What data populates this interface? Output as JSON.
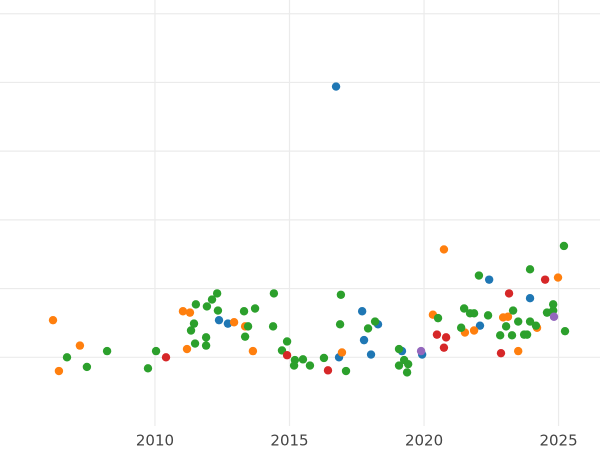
{
  "chart_data": {
    "type": "scatter",
    "xlim": [
      2004.24,
      2026.54
    ],
    "xticks": [
      2010,
      2015,
      2020,
      2025
    ],
    "ylim": [
      0,
      6.2
    ],
    "yticks": [
      1,
      2,
      3,
      4,
      5,
      6
    ],
    "grid": true,
    "series": [
      {
        "color": "#1f77b4",
        "x": [
          2016.73,
          2017.7,
          2018.29,
          2017.77,
          2018.03,
          2019.18,
          2019.93,
          2012.38,
          2012.71,
          2016.84,
          2022.42,
          2023.94,
          2022.08
        ],
        "values": [
          4.94,
          1.67,
          1.48,
          1.25,
          1.04,
          1.09,
          1.04,
          1.54,
          1.49,
          1.0,
          2.13,
          1.86,
          1.46
        ]
      },
      {
        "color": "#ff7f0e",
        "x": [
          2006.21,
          2006.43,
          2007.21,
          2011.04,
          2011.3,
          2011.19,
          2012.94,
          2013.35,
          2013.64,
          2016.95,
          2020.74,
          2020.33,
          2021.52,
          2021.86,
          2022.94,
          2023.12,
          2023.5,
          2024.2,
          2024.98
        ],
        "values": [
          1.54,
          0.8,
          1.17,
          1.67,
          1.65,
          1.12,
          1.51,
          1.45,
          1.09,
          1.07,
          2.57,
          1.62,
          1.36,
          1.39,
          1.58,
          1.59,
          1.09,
          1.43,
          2.16
        ]
      },
      {
        "color": "#2ca02c",
        "x": [
          2006.73,
          2007.47,
          2008.22,
          2009.74,
          2010.04,
          2011.52,
          2011.34,
          2011.45,
          2011.49,
          2011.9,
          2011.9,
          2011.93,
          2012.12,
          2012.31,
          2012.34,
          2013.31,
          2013.46,
          2013.35,
          2013.72,
          2014.42,
          2014.39,
          2014.72,
          2014.91,
          2015.2,
          2015.17,
          2015.5,
          2015.76,
          2016.28,
          2016.91,
          2016.88,
          2017.1,
          2017.92,
          2018.18,
          2019.07,
          2019.07,
          2019.26,
          2019.41,
          2019.37,
          2020.52,
          2021.38,
          2021.49,
          2021.71,
          2021.86,
          2022.04,
          2022.38,
          2022.83,
          2023.05,
          2023.31,
          2023.27,
          2023.5,
          2023.72,
          2023.83,
          2023.94,
          2023.94,
          2024.16,
          2024.57,
          2024.8,
          2024.8,
          2025.2,
          2025.24
        ],
        "values": [
          1.0,
          0.86,
          1.09,
          0.84,
          1.09,
          1.77,
          1.39,
          1.49,
          1.2,
          1.29,
          1.17,
          1.74,
          1.84,
          1.93,
          1.68,
          1.67,
          1.45,
          1.3,
          1.71,
          1.93,
          1.45,
          1.1,
          1.23,
          0.96,
          0.88,
          0.97,
          0.88,
          0.99,
          1.91,
          1.48,
          0.8,
          1.42,
          1.52,
          1.12,
          0.88,
          0.96,
          0.9,
          0.78,
          1.57,
          1.43,
          1.71,
          1.64,
          1.64,
          2.19,
          1.61,
          1.32,
          1.45,
          1.68,
          1.32,
          1.52,
          1.33,
          1.33,
          2.28,
          1.52,
          1.46,
          1.65,
          1.77,
          1.68,
          2.62,
          1.38
        ]
      },
      {
        "color": "#d62728",
        "x": [
          2010.41,
          2014.91,
          2016.43,
          2020.48,
          2020.82,
          2020.74,
          2023.16,
          2022.86,
          2024.5
        ],
        "values": [
          1.0,
          1.03,
          0.81,
          1.33,
          1.29,
          1.14,
          1.93,
          1.06,
          2.13
        ]
      },
      {
        "color": "#9467bd",
        "x": [
          2019.89,
          2024.83
        ],
        "values": [
          1.09,
          1.59
        ]
      }
    ]
  }
}
